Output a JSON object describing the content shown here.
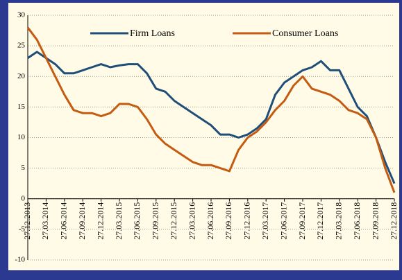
{
  "chart_data": {
    "type": "line",
    "categories": [
      "27.12.2013",
      null,
      "27.03.2014",
      null,
      "27.06.2014",
      null,
      "27.09.2014",
      null,
      "27.12.2014",
      null,
      "27.03.2015",
      null,
      "27.06.2015",
      null,
      "27.09.2015",
      null,
      "27.12.2015",
      null,
      "27.03.2016",
      null,
      "27.06.2016",
      null,
      "27.09.2016",
      null,
      "27.12.2016",
      null,
      "27.03.2017",
      null,
      "27.06.2017",
      null,
      "27.09.2017",
      null,
      "27.12.2017",
      null,
      "27.03.2018",
      null,
      "27.06.2018",
      null,
      "27.09.2018",
      null,
      "27.12.2018"
    ],
    "series": [
      {
        "name": "Firm Loans",
        "color": "#1f4e79",
        "values": [
          23,
          24,
          23,
          22,
          20.5,
          20.5,
          21,
          21.5,
          22,
          21.5,
          21.8,
          22,
          22,
          20.5,
          18,
          17.5,
          16,
          15,
          14,
          13,
          12,
          10.5,
          10.5,
          10,
          10.5,
          11.5,
          13,
          17,
          19,
          20,
          21,
          21.5,
          22.5,
          21,
          21,
          18,
          15,
          13.5,
          10,
          6,
          2.5
        ]
      },
      {
        "name": "Consumer Loans",
        "color": "#c55a11",
        "values": [
          28,
          26,
          23,
          20,
          17,
          14.5,
          14,
          14,
          13.5,
          14,
          15.5,
          15.5,
          15,
          13,
          10.5,
          9,
          8,
          7,
          6,
          5.5,
          5.5,
          5,
          4.5,
          8,
          10,
          11,
          12.5,
          14.5,
          16,
          18.5,
          20,
          18,
          17.5,
          17,
          16,
          14.5,
          14,
          13,
          10,
          5,
          1
        ]
      }
    ],
    "ylim": [
      -10,
      30
    ],
    "yticks": [
      -10,
      -5,
      0,
      5,
      10,
      15,
      20,
      25,
      30
    ],
    "grid": true,
    "legend": "top"
  }
}
